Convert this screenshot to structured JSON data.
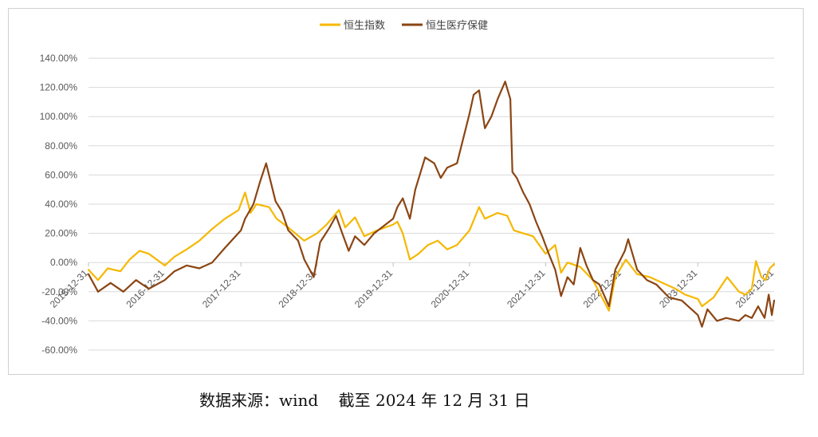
{
  "chart_data": {
    "type": "line",
    "title": "",
    "xlabel": "",
    "ylabel": "",
    "y_format": "percent_2dp",
    "ylim": [
      -60,
      140
    ],
    "y_ticks": [
      140,
      120,
      100,
      80,
      60,
      40,
      20,
      0,
      -20,
      -40,
      -60
    ],
    "x_range": [
      "2015-12-31",
      "2024-12-31"
    ],
    "x_tick_labels": [
      "2015-12-31",
      "2016-12-31",
      "2017-12-31",
      "2018-12-31",
      "2019-12-31",
      "2020-12-31",
      "2021-12-31",
      "2022-12-31",
      "2023-12-31",
      "2024-12-31"
    ],
    "grid": "horizontal",
    "legend_position": "top-center",
    "series": [
      {
        "name": "恒生指数",
        "color": "#f5b800",
        "points": [
          [
            "2015-12-31",
            -5
          ],
          [
            "2016-02-15",
            -12
          ],
          [
            "2016-04-01",
            -4
          ],
          [
            "2016-06-01",
            -6
          ],
          [
            "2016-07-15",
            2
          ],
          [
            "2016-09-01",
            8
          ],
          [
            "2016-10-15",
            6
          ],
          [
            "2016-12-31",
            -2
          ],
          [
            "2017-02-15",
            4
          ],
          [
            "2017-04-15",
            9
          ],
          [
            "2017-06-15",
            15
          ],
          [
            "2017-08-15",
            23
          ],
          [
            "2017-10-15",
            30
          ],
          [
            "2017-12-20",
            36
          ],
          [
            "2018-01-20",
            48
          ],
          [
            "2018-02-15",
            34
          ],
          [
            "2018-03-15",
            40
          ],
          [
            "2018-05-15",
            38
          ],
          [
            "2018-06-20",
            30
          ],
          [
            "2018-08-15",
            24
          ],
          [
            "2018-10-30",
            15
          ],
          [
            "2018-12-31",
            20
          ],
          [
            "2019-02-15",
            26
          ],
          [
            "2019-04-15",
            36
          ],
          [
            "2019-05-15",
            24
          ],
          [
            "2019-07-01",
            31
          ],
          [
            "2019-08-15",
            18
          ],
          [
            "2019-10-15",
            22
          ],
          [
            "2019-12-31",
            26
          ],
          [
            "2020-01-20",
            28
          ],
          [
            "2020-02-15",
            20
          ],
          [
            "2020-03-20",
            2
          ],
          [
            "2020-05-01",
            6
          ],
          [
            "2020-06-15",
            12
          ],
          [
            "2020-08-01",
            15
          ],
          [
            "2020-09-15",
            9
          ],
          [
            "2020-11-01",
            12
          ],
          [
            "2020-12-31",
            22
          ],
          [
            "2021-02-15",
            38
          ],
          [
            "2021-03-15",
            30
          ],
          [
            "2021-05-15",
            34
          ],
          [
            "2021-06-30",
            32
          ],
          [
            "2021-08-01",
            22
          ],
          [
            "2021-09-15",
            20
          ],
          [
            "2021-11-01",
            18
          ],
          [
            "2021-12-31",
            6
          ],
          [
            "2022-02-15",
            12
          ],
          [
            "2022-03-15",
            -7
          ],
          [
            "2022-04-15",
            0
          ],
          [
            "2022-06-15",
            -3
          ],
          [
            "2022-08-15",
            -12
          ],
          [
            "2022-10-31",
            -33
          ],
          [
            "2022-11-30",
            -10
          ],
          [
            "2023-01-20",
            2
          ],
          [
            "2023-03-15",
            -8
          ],
          [
            "2023-05-15",
            -10
          ],
          [
            "2023-07-15",
            -14
          ],
          [
            "2023-09-15",
            -18
          ],
          [
            "2023-10-31",
            -22
          ],
          [
            "2023-12-31",
            -25
          ],
          [
            "2024-01-20",
            -30
          ],
          [
            "2024-03-15",
            -24
          ],
          [
            "2024-05-20",
            -10
          ],
          [
            "2024-07-15",
            -20
          ],
          [
            "2024-08-15",
            -22
          ],
          [
            "2024-09-15",
            -18
          ],
          [
            "2024-10-05",
            1
          ],
          [
            "2024-10-31",
            -10
          ],
          [
            "2024-11-20",
            -12
          ],
          [
            "2024-12-10",
            -4
          ],
          [
            "2024-12-31",
            -1
          ]
        ]
      },
      {
        "name": "恒生医疗保健",
        "color": "#8b4513",
        "points": [
          [
            "2015-12-31",
            -8
          ],
          [
            "2016-02-15",
            -20
          ],
          [
            "2016-04-15",
            -14
          ],
          [
            "2016-06-15",
            -20
          ],
          [
            "2016-08-15",
            -12
          ],
          [
            "2016-10-15",
            -18
          ],
          [
            "2016-12-31",
            -12
          ],
          [
            "2017-02-15",
            -6
          ],
          [
            "2017-04-15",
            -2
          ],
          [
            "2017-06-15",
            -4
          ],
          [
            "2017-08-15",
            0
          ],
          [
            "2017-10-15",
            10
          ],
          [
            "2017-12-31",
            22
          ],
          [
            "2018-01-20",
            30
          ],
          [
            "2018-03-01",
            40
          ],
          [
            "2018-04-01",
            55
          ],
          [
            "2018-05-01",
            68
          ],
          [
            "2018-06-15",
            42
          ],
          [
            "2018-07-15",
            35
          ],
          [
            "2018-08-15",
            22
          ],
          [
            "2018-10-01",
            15
          ],
          [
            "2018-10-31",
            2
          ],
          [
            "2018-12-15",
            -10
          ],
          [
            "2019-01-15",
            14
          ],
          [
            "2019-03-01",
            24
          ],
          [
            "2019-04-01",
            32
          ],
          [
            "2019-05-01",
            20
          ],
          [
            "2019-06-01",
            8
          ],
          [
            "2019-07-01",
            18
          ],
          [
            "2019-08-15",
            12
          ],
          [
            "2019-10-01",
            20
          ],
          [
            "2019-12-31",
            30
          ],
          [
            "2020-01-20",
            38
          ],
          [
            "2020-02-15",
            44
          ],
          [
            "2020-03-20",
            30
          ],
          [
            "2020-04-15",
            50
          ],
          [
            "2020-06-01",
            72
          ],
          [
            "2020-07-15",
            68
          ],
          [
            "2020-08-15",
            58
          ],
          [
            "2020-09-15",
            65
          ],
          [
            "2020-11-01",
            68
          ],
          [
            "2020-12-31",
            102
          ],
          [
            "2021-01-20",
            115
          ],
          [
            "2021-02-15",
            118
          ],
          [
            "2021-03-15",
            92
          ],
          [
            "2021-04-15",
            100
          ],
          [
            "2021-05-15",
            112
          ],
          [
            "2021-06-20",
            124
          ],
          [
            "2021-07-15",
            112
          ],
          [
            "2021-07-25",
            62
          ],
          [
            "2021-08-15",
            58
          ],
          [
            "2021-09-15",
            48
          ],
          [
            "2021-10-15",
            40
          ],
          [
            "2021-11-15",
            28
          ],
          [
            "2021-12-15",
            18
          ],
          [
            "2022-01-15",
            6
          ],
          [
            "2022-02-15",
            -5
          ],
          [
            "2022-03-15",
            -23
          ],
          [
            "2022-04-15",
            -10
          ],
          [
            "2022-05-15",
            -15
          ],
          [
            "2022-06-15",
            10
          ],
          [
            "2022-07-15",
            -2
          ],
          [
            "2022-08-15",
            -12
          ],
          [
            "2022-09-15",
            -15
          ],
          [
            "2022-10-31",
            -30
          ],
          [
            "2022-11-30",
            -5
          ],
          [
            "2023-01-15",
            8
          ],
          [
            "2023-01-31",
            16
          ],
          [
            "2023-03-15",
            -5
          ],
          [
            "2023-05-01",
            -12
          ],
          [
            "2023-06-15",
            -15
          ],
          [
            "2023-08-15",
            -24
          ],
          [
            "2023-10-15",
            -26
          ],
          [
            "2023-12-31",
            -36
          ],
          [
            "2024-01-20",
            -44
          ],
          [
            "2024-02-15",
            -32
          ],
          [
            "2024-04-01",
            -40
          ],
          [
            "2024-05-15",
            -38
          ],
          [
            "2024-07-15",
            -40
          ],
          [
            "2024-08-15",
            -36
          ],
          [
            "2024-09-15",
            -38
          ],
          [
            "2024-10-15",
            -30
          ],
          [
            "2024-11-15",
            -38
          ],
          [
            "2024-12-05",
            -22
          ],
          [
            "2024-12-20",
            -36
          ],
          [
            "2024-12-31",
            -26
          ]
        ]
      }
    ]
  },
  "footer": {
    "source_note": "数据来源：wind    截至 2024 年 12 月 31 日"
  }
}
